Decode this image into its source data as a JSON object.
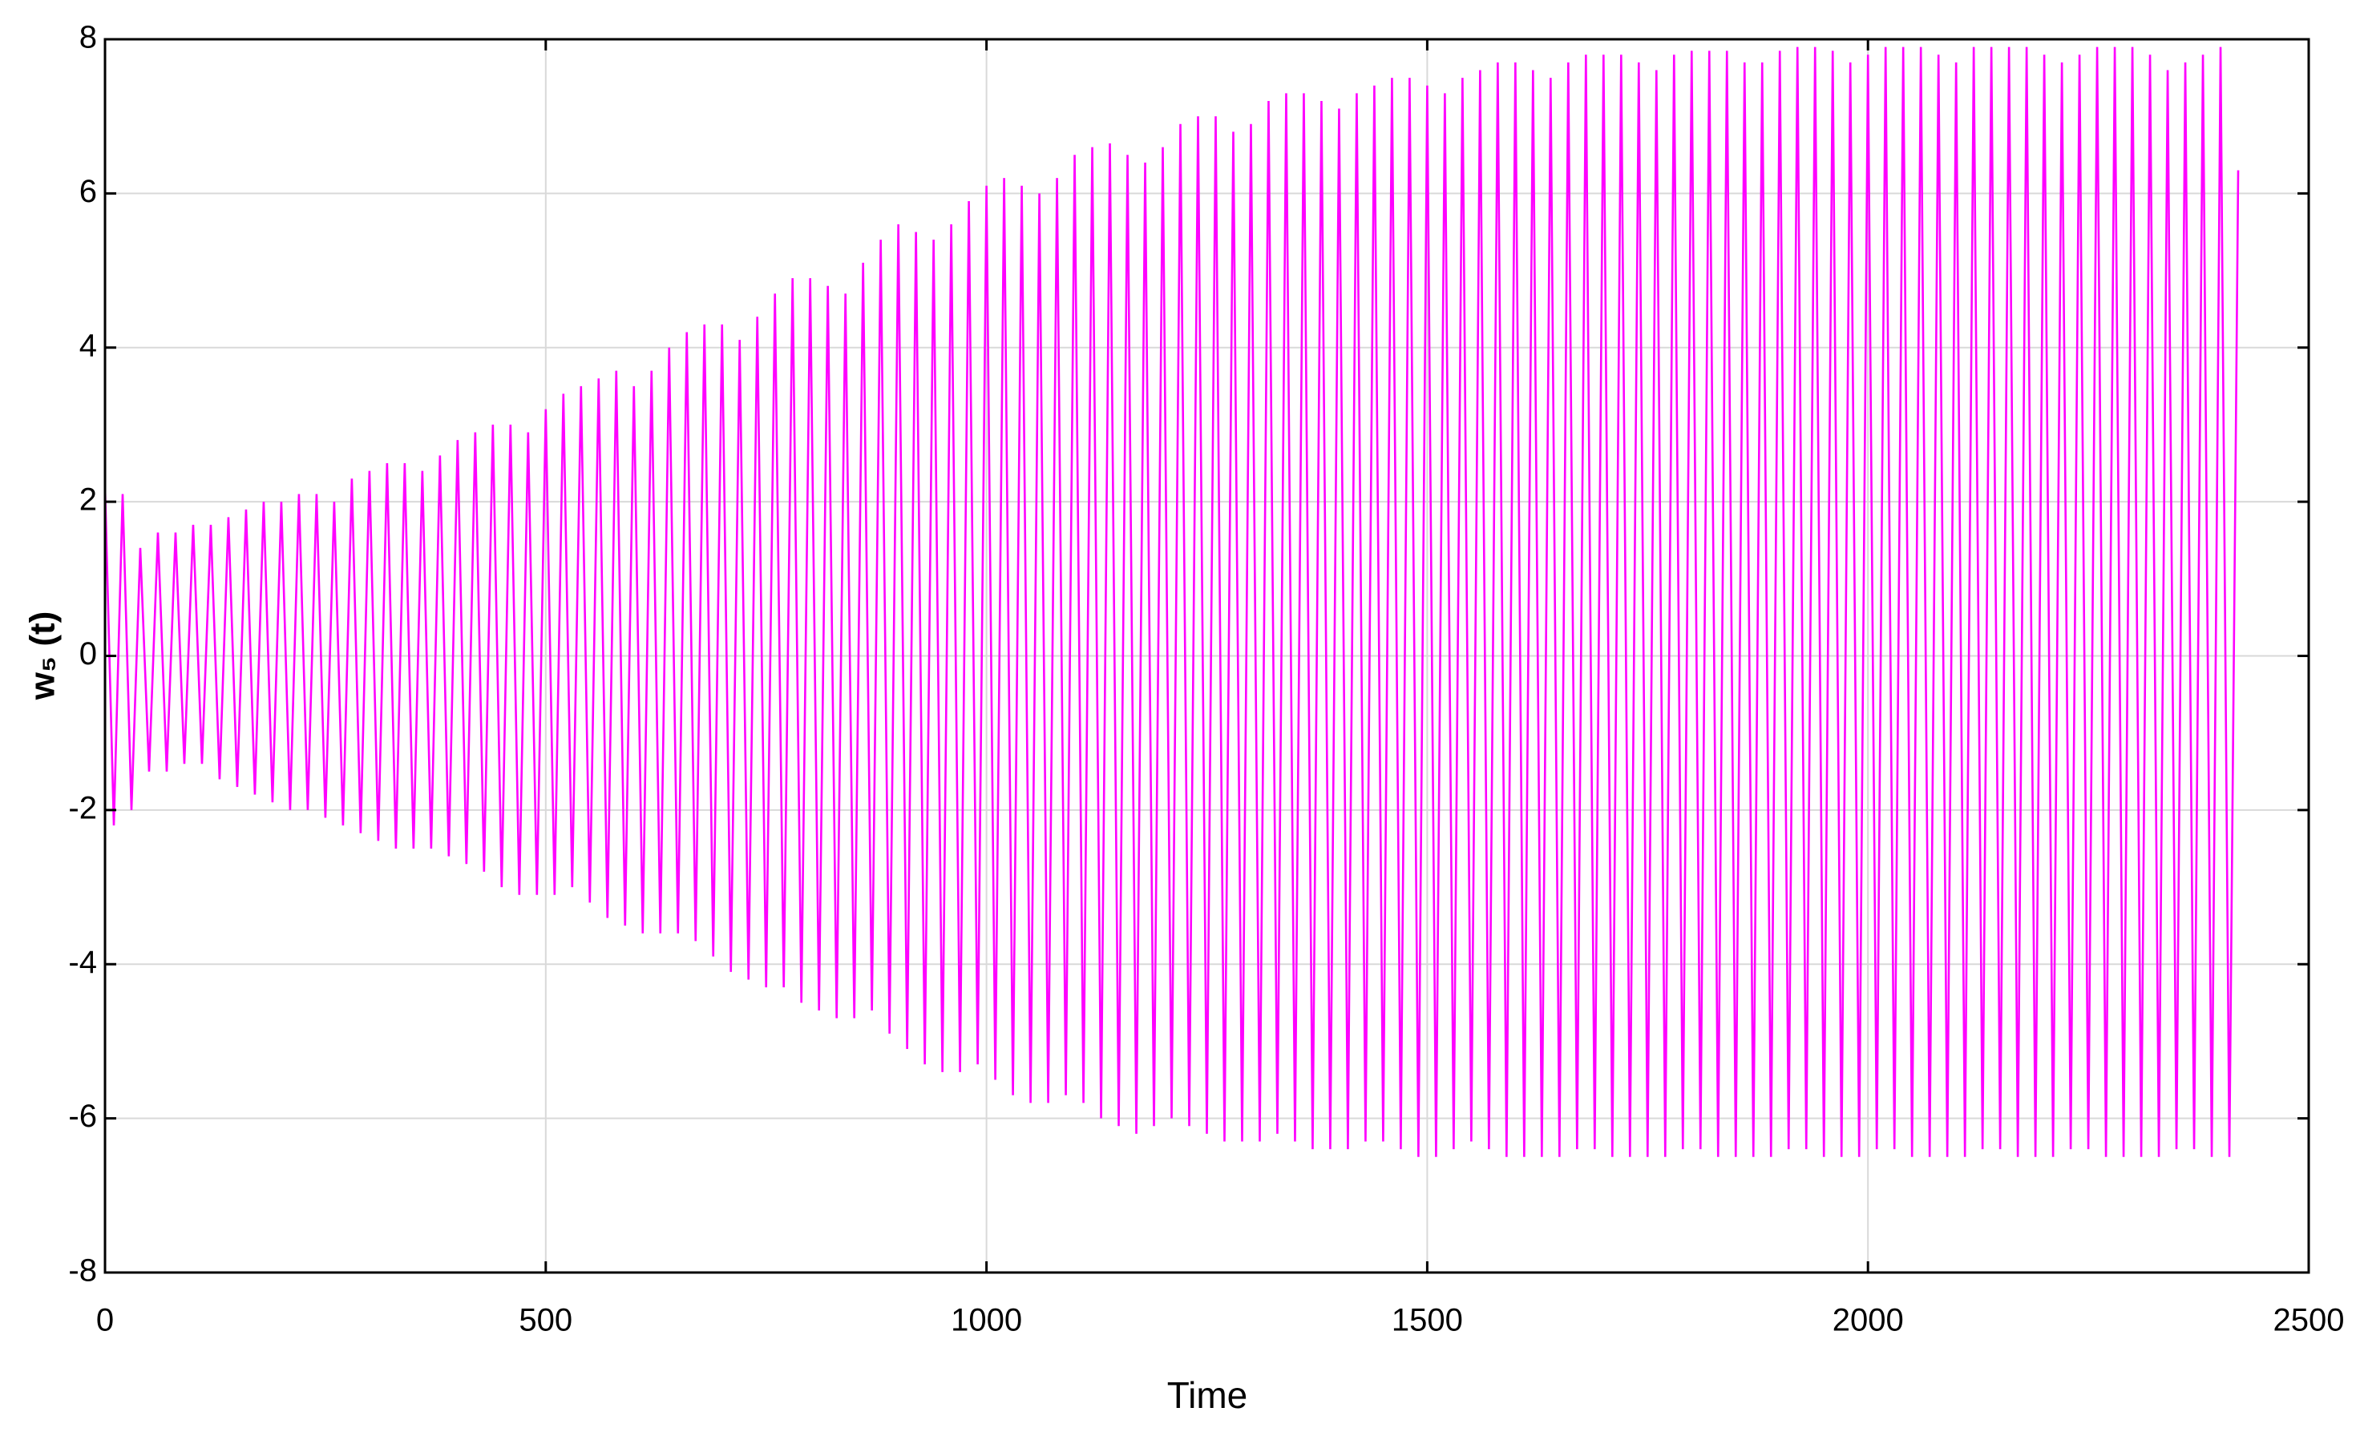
{
  "chart_data": {
    "type": "line",
    "xlabel": "Time",
    "ylabel": "w₅ (t)",
    "xlim": [
      0,
      2500
    ],
    "xticks": [
      0,
      500,
      1000,
      1500,
      2000,
      2500
    ],
    "ylim": [
      -8,
      8
    ],
    "yticks": [
      -8,
      -6,
      -4,
      -2,
      0,
      2,
      4,
      6,
      8
    ],
    "grid": true,
    "x": [
      0,
      10,
      20,
      30,
      40,
      50,
      60,
      70,
      80,
      90,
      100,
      110,
      120,
      130,
      140,
      150,
      160,
      170,
      180,
      190,
      200,
      210,
      220,
      230,
      240,
      250,
      260,
      270,
      280,
      290,
      300,
      310,
      320,
      330,
      340,
      350,
      360,
      370,
      380,
      390,
      400,
      410,
      420,
      430,
      440,
      450,
      460,
      470,
      480,
      490,
      500,
      510,
      520,
      530,
      540,
      550,
      560,
      570,
      580,
      590,
      600,
      610,
      620,
      630,
      640,
      650,
      660,
      670,
      680,
      690,
      700,
      710,
      720,
      730,
      740,
      750,
      760,
      770,
      780,
      790,
      800,
      810,
      820,
      830,
      840,
      850,
      860,
      870,
      880,
      890,
      900,
      910,
      920,
      930,
      940,
      950,
      960,
      970,
      980,
      990,
      1000,
      1010,
      1020,
      1030,
      1040,
      1050,
      1060,
      1070,
      1080,
      1090,
      1100,
      1110,
      1120,
      1130,
      1140,
      1150,
      1160,
      1170,
      1180,
      1190,
      1200,
      1210,
      1220,
      1230,
      1240,
      1250,
      1260,
      1270,
      1280,
      1290,
      1300,
      1310,
      1320,
      1330,
      1340,
      1350,
      1360,
      1370,
      1380,
      1390,
      1400,
      1410,
      1420,
      1430,
      1440,
      1450,
      1460,
      1470,
      1480,
      1490,
      1500,
      1510,
      1520,
      1530,
      1540,
      1550,
      1560,
      1570,
      1580,
      1590,
      1600,
      1610,
      1620,
      1630,
      1640,
      1650,
      1660,
      1670,
      1680,
      1690,
      1700,
      1710,
      1720,
      1730,
      1740,
      1750,
      1760,
      1770,
      1780,
      1790,
      1800,
      1810,
      1820,
      1830,
      1840,
      1850,
      1860,
      1870,
      1880,
      1890,
      1900,
      1910,
      1920,
      1930,
      1940,
      1950,
      1960,
      1970,
      1980,
      1990,
      2000,
      2010,
      2020,
      2030,
      2040,
      2050,
      2060,
      2070,
      2080,
      2090,
      2100,
      2110,
      2120,
      2130,
      2140,
      2150,
      2160,
      2170,
      2180,
      2190,
      2200,
      2210,
      2220,
      2230,
      2240,
      2250,
      2260,
      2270,
      2280,
      2290,
      2300,
      2310,
      2320,
      2330,
      2340,
      2350,
      2360,
      2370,
      2380,
      2390,
      2400,
      2410,
      2420
    ],
    "series": [
      {
        "color": "#ff00ff",
        "values": [
          2.2,
          -2.2,
          2.1,
          -2.0,
          1.4,
          -1.5,
          1.6,
          -1.5,
          1.6,
          -1.4,
          1.7,
          -1.4,
          1.7,
          -1.6,
          1.8,
          -1.7,
          1.9,
          -1.8,
          2.0,
          -1.9,
          2.0,
          -2.0,
          2.1,
          -2.0,
          2.1,
          -2.1,
          2.0,
          -2.2,
          2.3,
          -2.3,
          2.4,
          -2.4,
          2.5,
          -2.5,
          2.5,
          -2.5,
          2.4,
          -2.5,
          2.6,
          -2.6,
          2.8,
          -2.7,
          2.9,
          -2.8,
          3.0,
          -3.0,
          3.0,
          -3.1,
          2.9,
          -3.1,
          3.2,
          -3.1,
          3.4,
          -3.0,
          3.5,
          -3.2,
          3.6,
          -3.4,
          3.7,
          -3.5,
          3.5,
          -3.6,
          3.7,
          -3.6,
          4.0,
          -3.6,
          4.2,
          -3.7,
          4.3,
          -3.9,
          4.3,
          -4.1,
          4.1,
          -4.2,
          4.4,
          -4.3,
          4.7,
          -4.3,
          4.9,
          -4.5,
          4.9,
          -4.6,
          4.8,
          -4.7,
          4.7,
          -4.7,
          5.1,
          -4.6,
          5.4,
          -4.9,
          5.6,
          -5.1,
          5.5,
          -5.3,
          5.4,
          -5.4,
          5.6,
          -5.4,
          5.9,
          -5.3,
          6.1,
          -5.5,
          6.2,
          -5.7,
          6.1,
          -5.8,
          6.0,
          -5.8,
          6.2,
          -5.7,
          6.5,
          -5.8,
          6.6,
          -6.0,
          6.65,
          -6.1,
          6.5,
          -6.2,
          6.4,
          -6.1,
          6.6,
          -6.0,
          6.9,
          -6.1,
          7.0,
          -6.2,
          7.0,
          -6.3,
          6.8,
          -6.3,
          6.9,
          -6.3,
          7.2,
          -6.2,
          7.3,
          -6.3,
          7.3,
          -6.4,
          7.2,
          -6.4,
          7.1,
          -6.4,
          7.3,
          -6.3,
          7.4,
          -6.3,
          7.5,
          -6.4,
          7.5,
          -6.5,
          7.4,
          -6.5,
          7.3,
          -6.4,
          7.5,
          -6.3,
          7.6,
          -6.4,
          7.7,
          -6.5,
          7.7,
          -6.5,
          7.6,
          -6.5,
          7.5,
          -6.5,
          7.7,
          -6.4,
          7.8,
          -6.4,
          7.8,
          -6.5,
          7.8,
          -6.5,
          7.7,
          -6.5,
          7.6,
          -6.5,
          7.8,
          -6.4,
          7.85,
          -6.4,
          7.85,
          -6.5,
          7.85,
          -6.5,
          7.7,
          -6.5,
          7.7,
          -6.5,
          7.85,
          -6.4,
          7.9,
          -6.4,
          7.9,
          -6.5,
          7.85,
          -6.5,
          7.7,
          -6.5,
          7.8,
          -6.4,
          7.9,
          -6.4,
          7.9,
          -6.5,
          7.9,
          -6.5,
          7.8,
          -6.5,
          7.7,
          -6.5,
          7.9,
          -6.4,
          7.9,
          -6.4,
          7.9,
          -6.5,
          7.9,
          -6.5,
          7.8,
          -6.5,
          7.7,
          -6.4,
          7.8,
          -6.4,
          7.9,
          -6.5,
          7.9,
          -6.5,
          7.9,
          -6.5,
          7.8,
          -6.5,
          7.6,
          -6.4,
          7.7,
          -6.4,
          7.8,
          -6.5,
          7.9,
          -6.5,
          6.3
        ]
      }
    ]
  }
}
